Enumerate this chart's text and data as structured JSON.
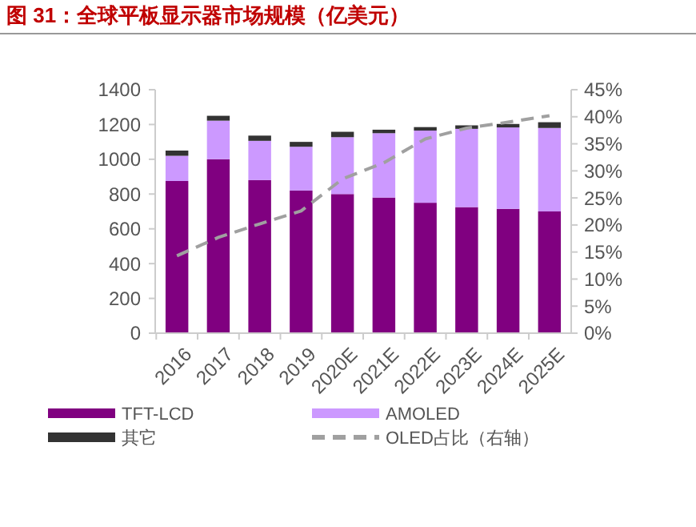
{
  "chart_data": {
    "type": "bar",
    "title": "图 31：全球平板显示器市场规模（亿美元）",
    "stacked": true,
    "categories": [
      "2016",
      "2017",
      "2018",
      "2019",
      "2020E",
      "2021E",
      "2022E",
      "2023E",
      "2024E",
      "2025E"
    ],
    "series": [
      {
        "name": "TFT-LCD",
        "color": "#800080",
        "values": [
          875,
          1000,
          880,
          820,
          800,
          780,
          750,
          725,
          715,
          700
        ]
      },
      {
        "name": "AMOLED",
        "color": "#cc99ff",
        "values": [
          145,
          222,
          226,
          252,
          327,
          370,
          415,
          450,
          468,
          480
        ]
      },
      {
        "name": "其它",
        "color": "#333333",
        "values": [
          30,
          28,
          30,
          28,
          31,
          20,
          20,
          20,
          20,
          33
        ]
      },
      {
        "name": "OLED占比（右轴）",
        "type": "line",
        "axis": "y2",
        "line_style": "dashed",
        "marker": "none",
        "color": "#a0a0a0",
        "values": [
          14.3,
          17.7,
          20.2,
          22.6,
          28.5,
          31.5,
          35.9,
          37.9,
          39,
          40.2
        ]
      }
    ],
    "ylim": [
      0,
      1400
    ],
    "yticks": [
      0,
      200,
      400,
      600,
      800,
      1000,
      1200,
      1400
    ],
    "y2lim": [
      0,
      45
    ],
    "y2ticks": [
      {
        "value": 0,
        "label": "0%"
      },
      {
        "value": 5,
        "label": "5%"
      },
      {
        "value": 10,
        "label": "10%"
      },
      {
        "value": 15,
        "label": "15%"
      },
      {
        "value": 20,
        "label": "20%"
      },
      {
        "value": 25,
        "label": "25%"
      },
      {
        "value": 30,
        "label": "30%"
      },
      {
        "value": 35,
        "label": "35%"
      },
      {
        "value": 40,
        "label": "40%"
      },
      {
        "value": 45,
        "label": "45%"
      }
    ],
    "grid": false,
    "legend": "bottom"
  }
}
